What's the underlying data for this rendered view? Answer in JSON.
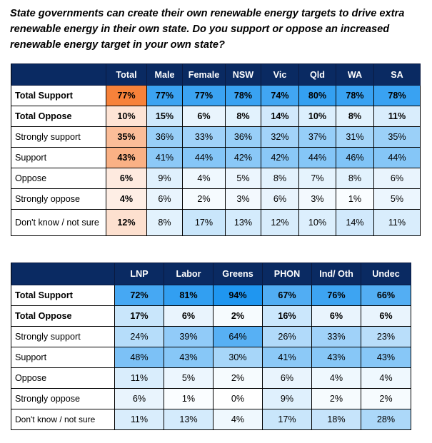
{
  "question": "State governments can create their own renewable energy targets to drive extra renewable energy in their own state. Do you support or oppose an increased renewable energy target in your own state?",
  "colors": {
    "header_bg": "#0a2a62",
    "orange_strong": "#f7823a",
    "blue_strong": "#3fa9f5"
  },
  "table1": {
    "headers": [
      "",
      "Total",
      "Male",
      "Female",
      "NSW",
      "Vic",
      "Qld",
      "WA",
      "SA"
    ],
    "rows": [
      {
        "label": "Total Support",
        "bold": true,
        "values": [
          "77%",
          "77%",
          "77%",
          "78%",
          "74%",
          "80%",
          "78%",
          "78%"
        ]
      },
      {
        "label": "Total Oppose",
        "bold": true,
        "values": [
          "10%",
          "15%",
          "6%",
          "8%",
          "14%",
          "10%",
          "8%",
          "11%"
        ]
      },
      {
        "label": "Strongly support",
        "bold": false,
        "values": [
          "35%",
          "36%",
          "33%",
          "36%",
          "32%",
          "37%",
          "31%",
          "35%"
        ]
      },
      {
        "label": "Support",
        "bold": false,
        "values": [
          "43%",
          "41%",
          "44%",
          "42%",
          "42%",
          "44%",
          "46%",
          "44%"
        ]
      },
      {
        "label": "Oppose",
        "bold": false,
        "values": [
          "6%",
          "9%",
          "4%",
          "5%",
          "8%",
          "7%",
          "8%",
          "6%"
        ]
      },
      {
        "label": "Strongly oppose",
        "bold": false,
        "values": [
          "4%",
          "6%",
          "2%",
          "3%",
          "6%",
          "3%",
          "1%",
          "5%"
        ]
      },
      {
        "label": "Don't know / not sure",
        "bold": false,
        "values": [
          "12%",
          "8%",
          "17%",
          "13%",
          "12%",
          "10%",
          "14%",
          "11%"
        ]
      }
    ]
  },
  "table2": {
    "headers": [
      "",
      "LNP",
      "Labor",
      "Greens",
      "PHON",
      "Ind/ Oth",
      "Undec"
    ],
    "rows": [
      {
        "label": "Total Support",
        "bold": true,
        "values": [
          "72%",
          "81%",
          "94%",
          "67%",
          "76%",
          "66%"
        ]
      },
      {
        "label": "Total Oppose",
        "bold": true,
        "values": [
          "17%",
          "6%",
          "2%",
          "16%",
          "6%",
          "6%"
        ]
      },
      {
        "label": "Strongly support",
        "bold": false,
        "values": [
          "24%",
          "39%",
          "64%",
          "26%",
          "33%",
          "23%"
        ]
      },
      {
        "label": "Support",
        "bold": false,
        "values": [
          "48%",
          "43%",
          "30%",
          "41%",
          "43%",
          "43%"
        ]
      },
      {
        "label": "Oppose",
        "bold": false,
        "values": [
          "11%",
          "5%",
          "2%",
          "6%",
          "4%",
          "4%"
        ]
      },
      {
        "label": "Strongly oppose",
        "bold": false,
        "values": [
          "6%",
          "1%",
          "0%",
          "9%",
          "2%",
          "2%"
        ]
      },
      {
        "label": "Don't know / not sure",
        "bold": false,
        "values": [
          "11%",
          "13%",
          "4%",
          "17%",
          "18%",
          "28%"
        ]
      }
    ]
  }
}
